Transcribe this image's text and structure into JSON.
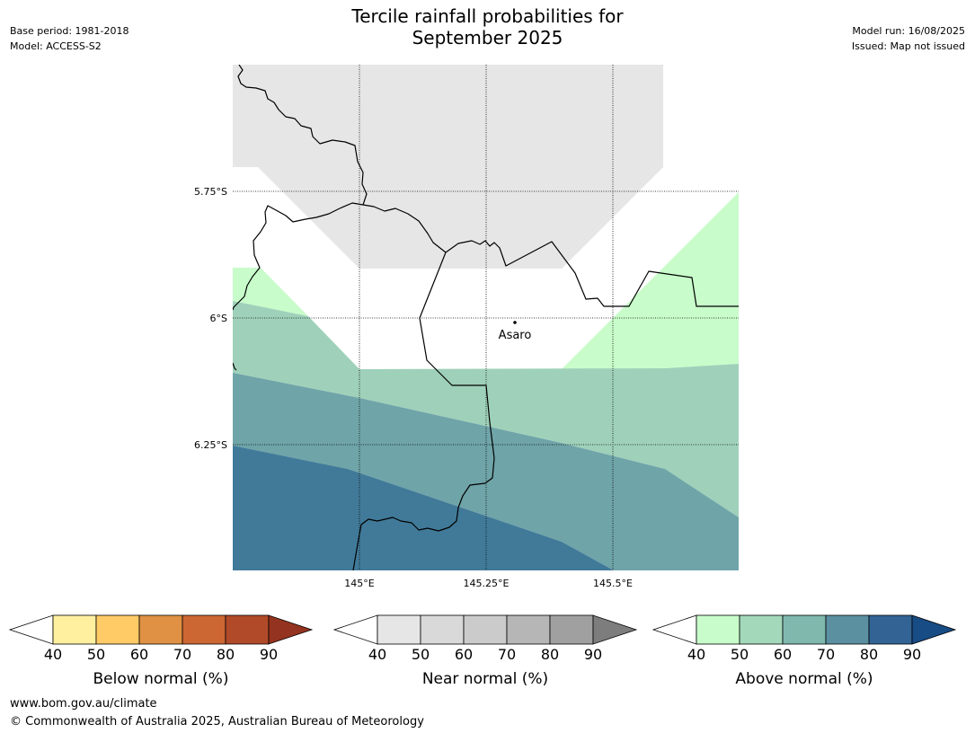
{
  "title_line1": "Tercile rainfall probabilities for",
  "title_line2": "September 2025",
  "meta_left": [
    "Base period: 1981-2018",
    "Model: ACCESS-S2"
  ],
  "meta_right": [
    "Model run: 16/08/2025",
    "Issued: Map not issued"
  ],
  "map": {
    "lat_labels": [
      "5.75°S",
      "6°S",
      "6.25°S"
    ],
    "lon_labels": [
      "145°E",
      "145.25°E",
      "145.5°E"
    ],
    "town": "Asaro"
  },
  "colorbars": [
    {
      "label": "Below normal (%)",
      "ticks": [
        "40",
        "50",
        "60",
        "70",
        "80",
        "90"
      ],
      "colors": [
        "#fff0a0",
        "#ffcb66",
        "#e09144",
        "#cc6633",
        "#b04a28",
        "#94331f"
      ]
    },
    {
      "label": "Near normal (%)",
      "ticks": [
        "40",
        "50",
        "60",
        "70",
        "80",
        "90"
      ],
      "colors": [
        "#e6e6e6",
        "#d9d9d9",
        "#cbcbcb",
        "#b6b6b6",
        "#a0a0a0",
        "#7d7d7d"
      ]
    },
    {
      "label": "Above normal (%)",
      "ticks": [
        "40",
        "50",
        "60",
        "70",
        "80",
        "90"
      ],
      "colors": [
        "#c8fcca",
        "#a3d8bb",
        "#80b8ae",
        "#5b90a1",
        "#326394",
        "#174c85"
      ]
    }
  ],
  "footer": {
    "url": "www.bom.gov.au/climate",
    "copyright": "© Commonwealth of Australia 2025, Australian Bureau of Meteorology"
  }
}
